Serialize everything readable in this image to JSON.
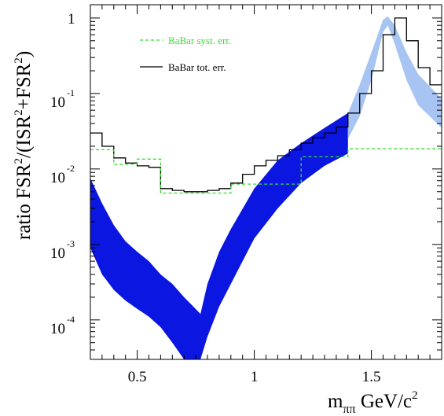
{
  "chart_data": {
    "type": "line",
    "yscale": "log",
    "xlim": [
      0.3,
      1.8
    ],
    "ylim": [
      3e-05,
      1.5
    ],
    "xticks": [
      {
        "value": 0.5,
        "label": "0.5"
      },
      {
        "value": 1.0,
        "label": "1"
      },
      {
        "value": 1.5,
        "label": "1.5"
      }
    ],
    "yticks": [
      {
        "value": 1,
        "base": "1",
        "exp": ""
      },
      {
        "value": 0.1,
        "base": "10",
        "exp": "-1"
      },
      {
        "value": 0.01,
        "base": "10",
        "exp": "-2"
      },
      {
        "value": 0.001,
        "base": "10",
        "exp": "-3"
      },
      {
        "value": 0.0001,
        "base": "10",
        "exp": "-4"
      }
    ],
    "ylabel": {
      "main": "ratio FSR",
      "sup1": "2",
      "mid1": "/(ISR",
      "sup2": "2",
      "mid2": "+FSR",
      "sup3": "2",
      "end": ")"
    },
    "xlabel": {
      "main": "m",
      "sub": "ππ",
      "unit": " GeV/c",
      "sup": "2"
    },
    "colors": {
      "syst": "#33dd33",
      "tot": "#000000",
      "band_dark": "#0b16e0",
      "band_light": "#a7c4f2"
    },
    "legend": {
      "position": "top-left",
      "entries": [
        {
          "label": "BaBar syst. err.",
          "color": "#33dd33",
          "style": "dashed"
        },
        {
          "label": "BaBar tot. err.",
          "color": "#000000",
          "style": "solid"
        }
      ]
    },
    "series": [
      {
        "name": "BaBar tot. err.",
        "style": "step",
        "edges": [
          0.3,
          0.35,
          0.4,
          0.45,
          0.5,
          0.55,
          0.6,
          0.65,
          0.7,
          0.75,
          0.8,
          0.85,
          0.9,
          0.95,
          1.0,
          1.05,
          1.1,
          1.15,
          1.2,
          1.25,
          1.3,
          1.35,
          1.4,
          1.45,
          1.5,
          1.55,
          1.6,
          1.65,
          1.7,
          1.75,
          1.8
        ],
        "values": [
          0.03,
          0.02,
          0.014,
          0.012,
          0.011,
          0.0105,
          0.0055,
          0.0052,
          0.005,
          0.005,
          0.0052,
          0.0055,
          0.0065,
          0.0085,
          0.011,
          0.013,
          0.015,
          0.018,
          0.022,
          0.026,
          0.03,
          0.036,
          0.055,
          0.1,
          0.2,
          0.6,
          1.0,
          0.5,
          0.22,
          0.13
        ]
      },
      {
        "name": "BaBar syst. err.",
        "style": "step",
        "edges": [
          0.3,
          0.35,
          0.4,
          0.5,
          0.6,
          0.9,
          1.2,
          1.4,
          1.8
        ],
        "values": [
          0.018,
          0.018,
          0.0115,
          0.0135,
          0.0048,
          0.0063,
          0.0145,
          0.0185,
          0.0185
        ]
      },
      {
        "name": "",
        "style": "band",
        "x": [
          0.3,
          0.35,
          0.4,
          0.45,
          0.5,
          0.55,
          0.6,
          0.65,
          0.7,
          0.74,
          0.77,
          0.8,
          0.85,
          0.9,
          1.0,
          1.1,
          1.2,
          1.3,
          1.4
        ],
        "ylow": [
          0.0009,
          0.0004,
          0.00025,
          0.00018,
          0.00014,
          0.00011,
          8e-05,
          5e-05,
          3e-05,
          3e-05,
          3e-05,
          6e-05,
          0.00015,
          0.0003,
          0.0012,
          0.003,
          0.0065,
          0.011,
          0.016
        ],
        "yhigh": [
          0.0075,
          0.0035,
          0.0018,
          0.0011,
          0.0008,
          0.0006,
          0.0004,
          0.0003,
          0.0002,
          0.00015,
          0.00012,
          0.0003,
          0.0008,
          0.0016,
          0.0055,
          0.013,
          0.022,
          0.035,
          0.055
        ]
      },
      {
        "name": "",
        "style": "band",
        "x": [
          1.4,
          1.45,
          1.5,
          1.55,
          1.57,
          1.6,
          1.65,
          1.7,
          1.8
        ],
        "ylow": [
          0.025,
          0.05,
          0.15,
          0.65,
          0.8,
          0.45,
          0.15,
          0.07,
          0.035
        ],
        "yhigh": [
          0.055,
          0.13,
          0.35,
          0.95,
          1.05,
          0.8,
          0.35,
          0.18,
          0.085
        ]
      }
    ]
  }
}
